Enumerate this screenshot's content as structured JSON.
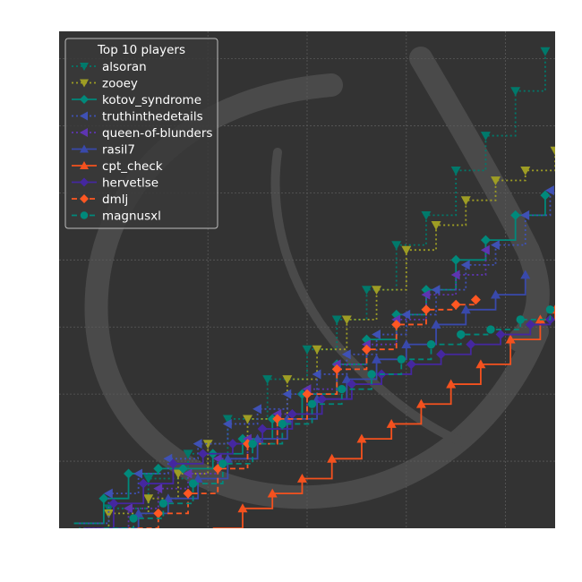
{
  "chart_data": {
    "type": "line",
    "title": "",
    "xlabel": "",
    "ylabel": "",
    "xlim": [
      0,
      100
    ],
    "ylim": [
      0,
      100
    ],
    "grid": true,
    "legend": {
      "title": "Top 10 players",
      "placement": "top-left"
    },
    "series": [
      {
        "name": "alsoran",
        "color": "#00796b",
        "dash": "dotted",
        "marker": "triangle-down",
        "x": [
          4,
          10,
          18,
          26,
          34,
          42,
          50,
          56,
          62,
          68,
          74,
          80,
          86,
          92,
          98
        ],
        "y": [
          0,
          4,
          10,
          15,
          22,
          30,
          36,
          42,
          48,
          57,
          63,
          72,
          79,
          88,
          96
        ]
      },
      {
        "name": "zooey",
        "color": "#9e9d24",
        "dash": "dotted",
        "marker": "triangle-down",
        "x": [
          5,
          10,
          18,
          24,
          30,
          38,
          46,
          52,
          58,
          64,
          70,
          76,
          82,
          88,
          94,
          100
        ],
        "y": [
          0,
          3,
          6,
          11,
          17,
          22,
          30,
          36,
          42,
          48,
          56,
          61,
          66,
          70,
          72,
          76
        ]
      },
      {
        "name": "kotov_syndrome",
        "color": "#00897b",
        "dash": "solid",
        "marker": "diamond",
        "x": [
          3,
          9,
          14,
          20,
          25,
          31,
          37,
          43,
          49,
          56,
          62,
          68,
          74,
          80,
          86,
          92,
          98
        ],
        "y": [
          1,
          6,
          11,
          12,
          12,
          15,
          18,
          22,
          27,
          33,
          38,
          43,
          48,
          54,
          58,
          63,
          67
        ]
      },
      {
        "name": "truthinthedetails",
        "color": "#3f51b5",
        "dash": "dotted",
        "marker": "triangle-left",
        "x": [
          4,
          10,
          16,
          22,
          28,
          34,
          40,
          46,
          52,
          58,
          64,
          70,
          76,
          82,
          88,
          94,
          99
        ],
        "y": [
          1,
          7,
          11,
          14,
          17,
          21,
          24,
          27,
          31,
          35,
          39,
          43,
          48,
          53,
          57,
          63,
          68
        ]
      },
      {
        "name": "queen-of-blunders",
        "color": "#5e35b1",
        "dash": "dotted",
        "marker": "triangle-left",
        "x": [
          8,
          14,
          20,
          26,
          32,
          38,
          44,
          50,
          56,
          62,
          68,
          74,
          80,
          86
        ],
        "y": [
          0,
          4,
          8,
          11,
          14,
          18,
          23,
          28,
          33,
          37,
          42,
          47,
          51,
          56
        ]
      },
      {
        "name": "rasil7",
        "color": "#3949ab",
        "dash": "solid",
        "marker": "triangle-up",
        "x": [
          10,
          16,
          22,
          28,
          34,
          40,
          46,
          52,
          58,
          64,
          70,
          76,
          82,
          88,
          94
        ],
        "y": [
          0,
          3,
          6,
          10,
          14,
          18,
          22,
          26,
          30,
          34,
          37,
          41,
          44,
          47,
          51
        ]
      },
      {
        "name": "cpt_check",
        "color": "#f4511e",
        "dash": "solid",
        "marker": "triangle-up",
        "x": [
          31,
          37,
          43,
          49,
          55,
          61,
          67,
          73,
          79,
          85,
          91,
          97,
          100
        ],
        "y": [
          0,
          4,
          7,
          10,
          14,
          18,
          21,
          25,
          29,
          33,
          38,
          42,
          44
        ]
      },
      {
        "name": "hervetlse",
        "color": "#4527a0",
        "dash": "solid",
        "marker": "diamond",
        "x": [
          5,
          11,
          17,
          23,
          29,
          35,
          41,
          47,
          53,
          59,
          65,
          71,
          77,
          83,
          89,
          95,
          99
        ],
        "y": [
          0,
          5,
          9,
          13,
          15,
          17,
          20,
          23,
          26,
          29,
          31,
          33,
          35,
          37,
          39,
          41,
          42
        ]
      },
      {
        "name": "dmlj",
        "color": "#ff5722",
        "dash": "dashed",
        "marker": "diamond",
        "x": [
          14,
          20,
          26,
          32,
          38,
          44,
          50,
          56,
          62,
          68,
          74,
          80,
          84
        ],
        "y": [
          0,
          3,
          7,
          12,
          17,
          22,
          27,
          32,
          36,
          41,
          44,
          45,
          46
        ]
      },
      {
        "name": "magnusxl",
        "color": "#00897b",
        "dash": "dashed",
        "marker": "circle",
        "x": [
          9,
          15,
          21,
          27,
          33,
          39,
          45,
          51,
          57,
          63,
          69,
          75,
          81,
          87,
          93,
          99
        ],
        "y": [
          0,
          2,
          5,
          9,
          13,
          17,
          21,
          25,
          28,
          31,
          34,
          37,
          39,
          40,
          42,
          44
        ]
      }
    ]
  }
}
